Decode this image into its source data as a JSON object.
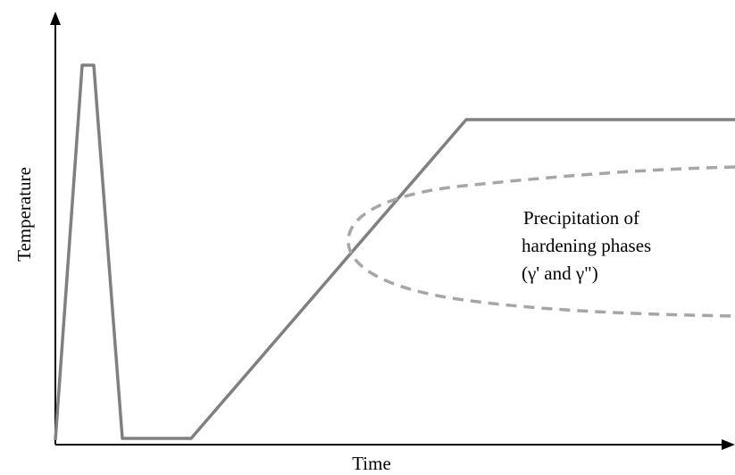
{
  "diagram": {
    "x_label": "Time",
    "y_label": "Temperature",
    "annotation": {
      "lines": [
        "Precipitation of",
        "hardening phases",
        "(γ' and γ\")"
      ]
    },
    "colors": {
      "axis": "#000000",
      "heat_curve": "#808080",
      "precipitation_curve": "#a6a6a6"
    }
  }
}
